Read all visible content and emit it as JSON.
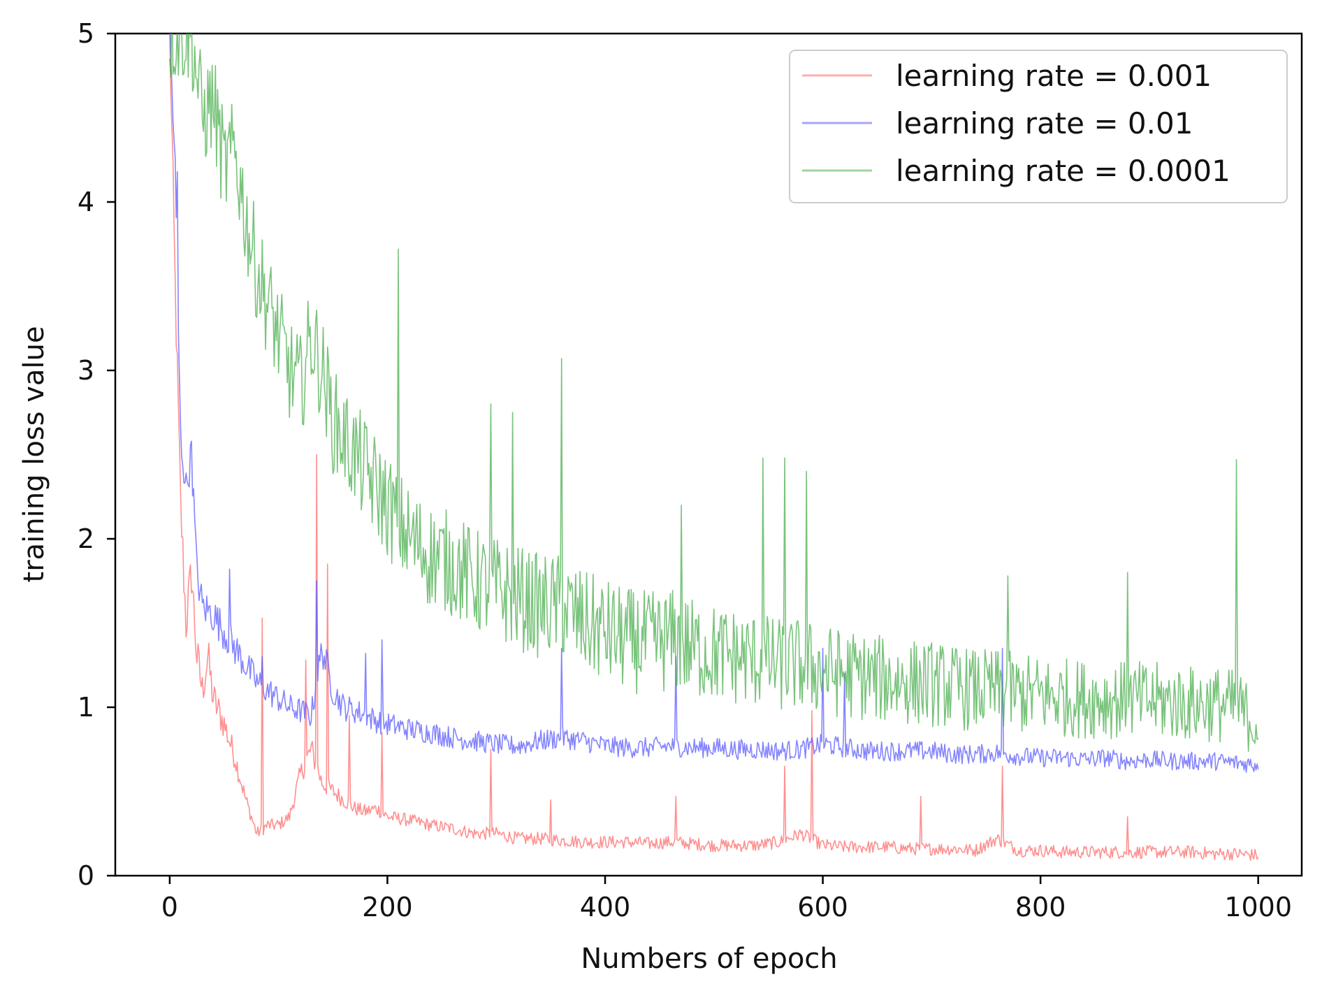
{
  "chart_data": {
    "type": "line",
    "xlabel": "Numbers of epoch",
    "ylabel": "training loss value",
    "xlim": [
      -50,
      1040
    ],
    "ylim": [
      0,
      5
    ],
    "xticks": [
      0,
      200,
      400,
      600,
      800,
      1000
    ],
    "yticks": [
      0,
      1,
      2,
      3,
      4,
      5
    ],
    "grid": false,
    "legend_position": "top-right",
    "series": [
      {
        "name": "learning rate = 0.001",
        "color": "#ff6b6b",
        "points": [
          [
            0,
            5.0
          ],
          [
            5,
            3.5
          ],
          [
            10,
            2.2
          ],
          [
            15,
            1.5
          ],
          [
            20,
            1.8
          ],
          [
            25,
            1.3
          ],
          [
            30,
            1.1
          ],
          [
            35,
            1.3
          ],
          [
            40,
            1.05
          ],
          [
            50,
            0.9
          ],
          [
            60,
            0.7
          ],
          [
            70,
            0.45
          ],
          [
            80,
            0.25
          ],
          [
            90,
            0.3
          ],
          [
            100,
            0.3
          ],
          [
            110,
            0.35
          ],
          [
            120,
            0.6
          ],
          [
            130,
            0.75
          ],
          [
            140,
            0.55
          ],
          [
            150,
            0.5
          ],
          [
            160,
            0.45
          ],
          [
            170,
            0.4
          ],
          [
            180,
            0.38
          ],
          [
            190,
            0.4
          ],
          [
            200,
            0.35
          ],
          [
            220,
            0.33
          ],
          [
            240,
            0.3
          ],
          [
            260,
            0.28
          ],
          [
            280,
            0.25
          ],
          [
            300,
            0.25
          ],
          [
            320,
            0.22
          ],
          [
            340,
            0.22
          ],
          [
            360,
            0.21
          ],
          [
            380,
            0.2
          ],
          [
            400,
            0.2
          ],
          [
            420,
            0.2
          ],
          [
            440,
            0.19
          ],
          [
            460,
            0.2
          ],
          [
            480,
            0.19
          ],
          [
            500,
            0.18
          ],
          [
            520,
            0.18
          ],
          [
            540,
            0.18
          ],
          [
            560,
            0.2
          ],
          [
            580,
            0.25
          ],
          [
            600,
            0.18
          ],
          [
            620,
            0.17
          ],
          [
            640,
            0.17
          ],
          [
            660,
            0.17
          ],
          [
            680,
            0.16
          ],
          [
            700,
            0.16
          ],
          [
            720,
            0.16
          ],
          [
            740,
            0.15
          ],
          [
            760,
            0.22
          ],
          [
            780,
            0.15
          ],
          [
            800,
            0.15
          ],
          [
            820,
            0.14
          ],
          [
            840,
            0.14
          ],
          [
            860,
            0.14
          ],
          [
            880,
            0.14
          ],
          [
            900,
            0.14
          ],
          [
            920,
            0.14
          ],
          [
            940,
            0.14
          ],
          [
            960,
            0.13
          ],
          [
            980,
            0.13
          ],
          [
            1000,
            0.12
          ]
        ],
        "spikes": [
          [
            85,
            1.53
          ],
          [
            125,
            1.28
          ],
          [
            135,
            2.5
          ],
          [
            145,
            1.85
          ],
          [
            165,
            0.95
          ],
          [
            195,
            0.85
          ],
          [
            295,
            0.75
          ],
          [
            350,
            0.45
          ],
          [
            465,
            0.47
          ],
          [
            565,
            0.65
          ],
          [
            590,
            0.98
          ],
          [
            690,
            0.47
          ],
          [
            765,
            0.65
          ],
          [
            880,
            0.35
          ]
        ]
      },
      {
        "name": "learning rate = 0.01",
        "color": "#5b5bff",
        "points": [
          [
            0,
            5.0
          ],
          [
            5,
            4.2
          ],
          [
            10,
            2.6
          ],
          [
            15,
            2.3
          ],
          [
            20,
            2.5
          ],
          [
            25,
            1.8
          ],
          [
            30,
            1.6
          ],
          [
            40,
            1.55
          ],
          [
            50,
            1.45
          ],
          [
            60,
            1.35
          ],
          [
            70,
            1.25
          ],
          [
            80,
            1.15
          ],
          [
            90,
            1.1
          ],
          [
            100,
            1.05
          ],
          [
            110,
            1.0
          ],
          [
            120,
            0.98
          ],
          [
            130,
            0.95
          ],
          [
            140,
            1.35
          ],
          [
            150,
            1.1
          ],
          [
            160,
            1.0
          ],
          [
            170,
            0.98
          ],
          [
            180,
            0.95
          ],
          [
            190,
            0.92
          ],
          [
            200,
            0.9
          ],
          [
            220,
            0.87
          ],
          [
            240,
            0.85
          ],
          [
            260,
            0.82
          ],
          [
            280,
            0.8
          ],
          [
            300,
            0.78
          ],
          [
            320,
            0.77
          ],
          [
            340,
            0.8
          ],
          [
            360,
            0.82
          ],
          [
            380,
            0.8
          ],
          [
            400,
            0.77
          ],
          [
            420,
            0.76
          ],
          [
            440,
            0.76
          ],
          [
            460,
            0.77
          ],
          [
            480,
            0.76
          ],
          [
            500,
            0.76
          ],
          [
            520,
            0.75
          ],
          [
            540,
            0.75
          ],
          [
            560,
            0.74
          ],
          [
            580,
            0.75
          ],
          [
            600,
            0.78
          ],
          [
            620,
            0.76
          ],
          [
            640,
            0.74
          ],
          [
            660,
            0.74
          ],
          [
            680,
            0.74
          ],
          [
            700,
            0.74
          ],
          [
            720,
            0.72
          ],
          [
            740,
            0.72
          ],
          [
            760,
            0.73
          ],
          [
            780,
            0.71
          ],
          [
            800,
            0.7
          ],
          [
            820,
            0.7
          ],
          [
            840,
            0.69
          ],
          [
            860,
            0.7
          ],
          [
            880,
            0.68
          ],
          [
            900,
            0.69
          ],
          [
            920,
            0.68
          ],
          [
            940,
            0.68
          ],
          [
            960,
            0.68
          ],
          [
            980,
            0.67
          ],
          [
            1000,
            0.66
          ]
        ],
        "spikes": [
          [
            7,
            4.18
          ],
          [
            20,
            2.58
          ],
          [
            55,
            1.82
          ],
          [
            85,
            1.3
          ],
          [
            135,
            1.75
          ],
          [
            180,
            1.32
          ],
          [
            195,
            1.4
          ],
          [
            360,
            1.35
          ],
          [
            465,
            1.3
          ],
          [
            600,
            1.35
          ],
          [
            620,
            1.2
          ],
          [
            765,
            1.35
          ]
        ]
      },
      {
        "name": "learning rate = 0.0001",
        "color": "#4caf50",
        "points": [
          [
            0,
            5.0
          ],
          [
            20,
            5.0
          ],
          [
            30,
            4.5
          ],
          [
            40,
            4.6
          ],
          [
            50,
            4.2
          ],
          [
            60,
            4.3
          ],
          [
            70,
            3.9
          ],
          [
            80,
            3.6
          ],
          [
            90,
            3.4
          ],
          [
            100,
            3.2
          ],
          [
            110,
            3.0
          ],
          [
            120,
            2.9
          ],
          [
            130,
            3.2
          ],
          [
            140,
            3.0
          ],
          [
            150,
            2.7
          ],
          [
            160,
            2.6
          ],
          [
            170,
            2.5
          ],
          [
            180,
            2.4
          ],
          [
            190,
            2.3
          ],
          [
            200,
            2.2
          ],
          [
            220,
            2.0
          ],
          [
            240,
            1.9
          ],
          [
            260,
            1.85
          ],
          [
            280,
            1.75
          ],
          [
            300,
            1.7
          ],
          [
            320,
            1.65
          ],
          [
            340,
            1.6
          ],
          [
            360,
            1.6
          ],
          [
            380,
            1.5
          ],
          [
            400,
            1.45
          ],
          [
            420,
            1.4
          ],
          [
            440,
            1.38
          ],
          [
            460,
            1.4
          ],
          [
            480,
            1.35
          ],
          [
            500,
            1.32
          ],
          [
            520,
            1.3
          ],
          [
            540,
            1.28
          ],
          [
            560,
            1.25
          ],
          [
            580,
            1.25
          ],
          [
            600,
            1.22
          ],
          [
            620,
            1.2
          ],
          [
            640,
            1.18
          ],
          [
            660,
            1.16
          ],
          [
            680,
            1.15
          ],
          [
            700,
            1.14
          ],
          [
            720,
            1.12
          ],
          [
            740,
            1.1
          ],
          [
            760,
            1.1
          ],
          [
            780,
            1.08
          ],
          [
            800,
            1.07
          ],
          [
            820,
            1.06
          ],
          [
            840,
            1.05
          ],
          [
            860,
            1.05
          ],
          [
            880,
            1.04
          ],
          [
            900,
            1.04
          ],
          [
            920,
            1.03
          ],
          [
            940,
            1.02
          ],
          [
            960,
            1.02
          ],
          [
            980,
            1.0
          ],
          [
            1000,
            0.9
          ]
        ],
        "spikes": [
          [
            210,
            3.72
          ],
          [
            360,
            3.07
          ],
          [
            295,
            2.8
          ],
          [
            315,
            2.75
          ],
          [
            545,
            2.48
          ],
          [
            565,
            2.48
          ],
          [
            585,
            2.4
          ],
          [
            880,
            1.8
          ],
          [
            980,
            2.47
          ],
          [
            470,
            2.2
          ],
          [
            770,
            1.78
          ]
        ]
      }
    ]
  }
}
